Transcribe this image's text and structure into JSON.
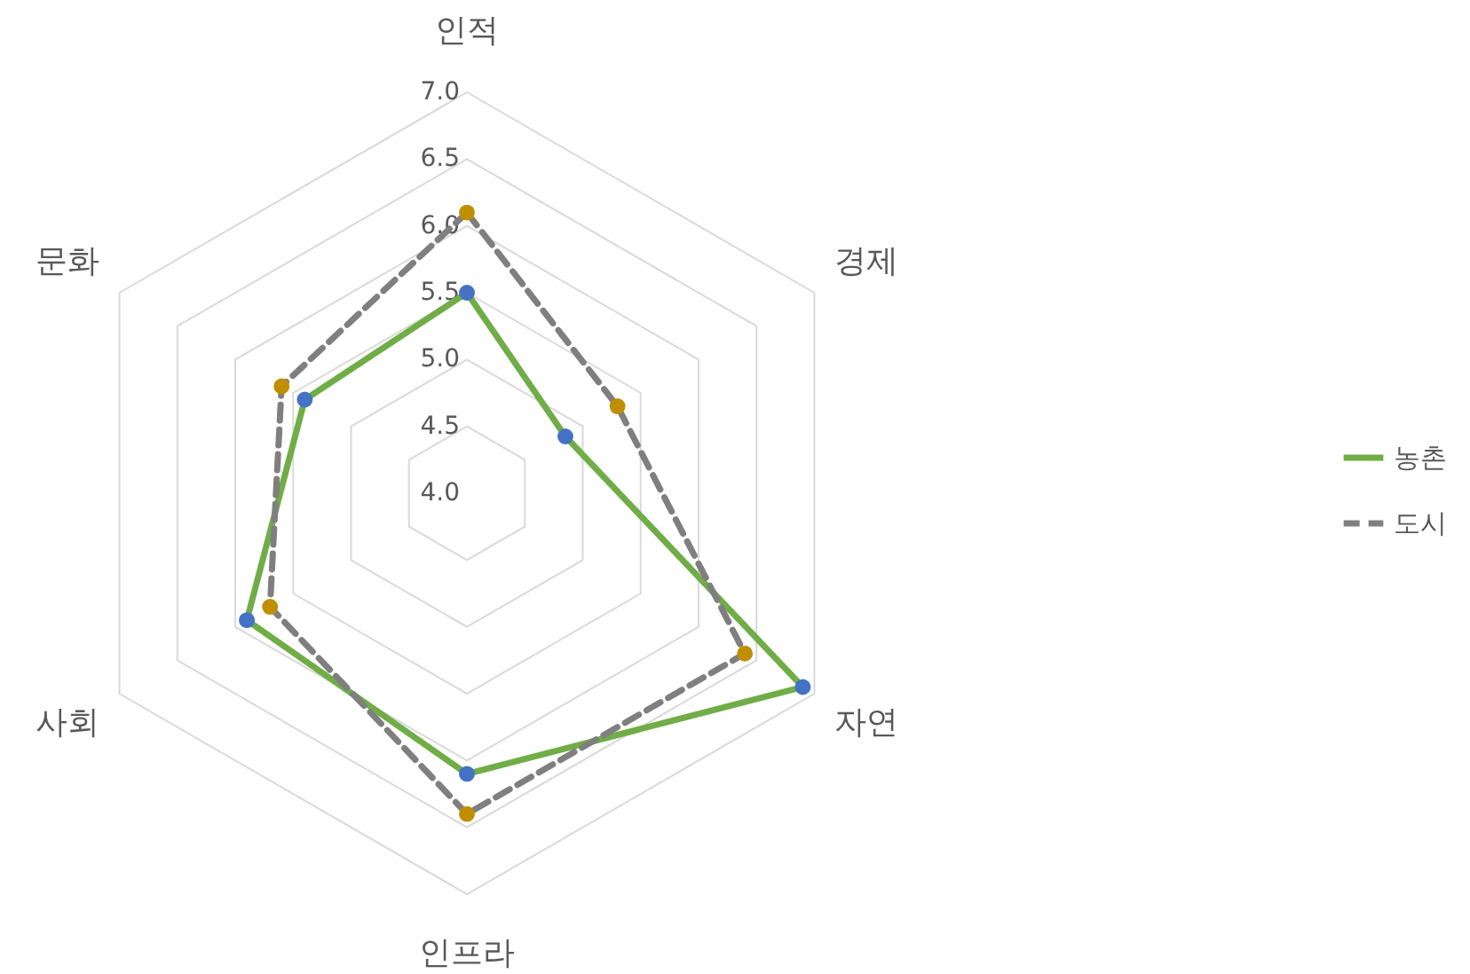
{
  "chart_data": {
    "type": "radar",
    "categories": [
      "인적",
      "경제",
      "자연",
      "인프라",
      "사회",
      "문화"
    ],
    "series": [
      {
        "name": "농촌",
        "color": "#70ad47",
        "colors": [
          "#4472c4",
          "#4472c4",
          "#4472c4",
          "#4472c4",
          "#4472c4",
          "#4472c4"
        ],
        "line_style": "solid",
        "values": [
          5.5,
          4.85,
          6.9,
          6.1,
          5.9,
          5.4
        ]
      },
      {
        "name": "도시",
        "color": "#7f7f7f",
        "colors": [
          "#bf8f00",
          "#bf8f00",
          "#bf8f00",
          "#bf8f00",
          "#bf8f00",
          "#bf8f00"
        ],
        "line_style": "dashed",
        "values": [
          6.1,
          5.3,
          6.4,
          6.4,
          5.7,
          5.6
        ]
      }
    ],
    "ylim": [
      4.0,
      7.0
    ],
    "yticks": [
      {
        "value": 4,
        "label": "4.0"
      },
      {
        "value": 4.5,
        "label": "4.5"
      },
      {
        "value": 5,
        "label": "5.0"
      },
      {
        "value": 5.5,
        "label": "5.5"
      },
      {
        "value": 6,
        "label": "6.0"
      },
      {
        "value": 6.5,
        "label": "6.5"
      },
      {
        "value": 7,
        "label": "7.0"
      }
    ],
    "grid": true,
    "marker": "circle",
    "legend": "right"
  }
}
